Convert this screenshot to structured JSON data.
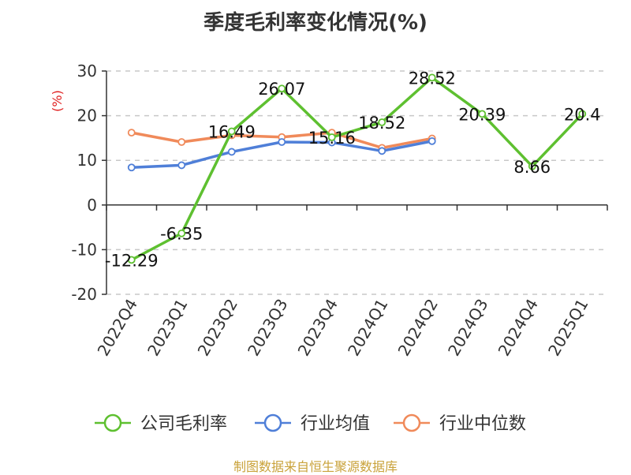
{
  "title": "季度毛利率变化情况(%)",
  "footer": "制图数据来自恒生聚源数据库",
  "chart_data": {
    "type": "line",
    "title": "季度毛利率变化情况(%)",
    "ylabel": "(%)",
    "ylim": [
      -20,
      30
    ],
    "yticks": [
      "30",
      "20",
      "10",
      "0",
      "-10",
      "-20"
    ],
    "categories": [
      "2022Q4",
      "2023Q1",
      "2023Q2",
      "2023Q3",
      "2023Q4",
      "2024Q1",
      "2024Q2",
      "2024Q3",
      "2024Q4",
      "2025Q1"
    ],
    "grid": true,
    "legend_position": "bottom",
    "series": [
      {
        "name": "公司毛利率",
        "color": "#5ec030",
        "values": [
          -12.29,
          -6.35,
          16.49,
          26.07,
          15.16,
          18.52,
          28.52,
          20.39,
          8.66,
          20.4
        ],
        "labels": [
          "-12.29",
          "-6.35",
          "16.49",
          "26.07",
          "15.16",
          "18.52",
          "28.52",
          "20.39",
          "8.66",
          "20.4"
        ]
      },
      {
        "name": "行业均值",
        "color": "#4f7fd8",
        "values": [
          8.4,
          8.9,
          11.9,
          14.1,
          14.0,
          12.1,
          14.3,
          null,
          null,
          null
        ]
      },
      {
        "name": "行业中位数",
        "color": "#f08a5a",
        "values": [
          16.2,
          14.1,
          15.6,
          15.2,
          16.2,
          12.8,
          14.9,
          null,
          null,
          null
        ]
      }
    ]
  }
}
